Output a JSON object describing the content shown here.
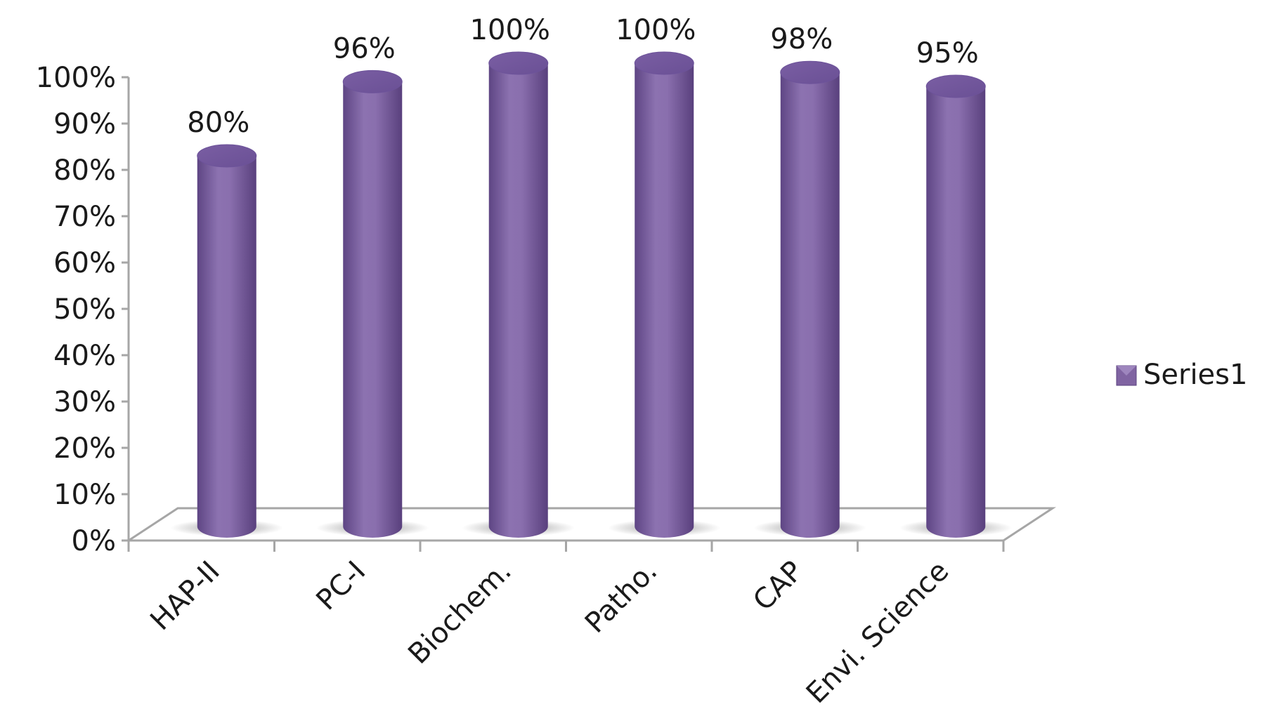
{
  "chart_data": {
    "type": "bar",
    "categories": [
      "HAP-II",
      "PC-I",
      "Biochem.",
      "Patho.",
      "CAP",
      "Envi. Science"
    ],
    "series": [
      {
        "name": "Series1",
        "values": [
          80,
          96,
          100,
          100,
          98,
          95
        ]
      }
    ],
    "data_labels": [
      "80%",
      "96%",
      "100%",
      "100%",
      "98%",
      "95%"
    ],
    "y_ticks": [
      "0%",
      "10%",
      "20%",
      "30%",
      "40%",
      "50%",
      "60%",
      "70%",
      "80%",
      "90%",
      "100%"
    ],
    "ylim": [
      0,
      100
    ],
    "legend_position": "right",
    "style": "3d-cylinder",
    "colors": {
      "bar": "#8064a2",
      "bar_dark": "#5b4380",
      "bar_light": "#a58fc6",
      "axis": "#a6a6a6"
    }
  }
}
